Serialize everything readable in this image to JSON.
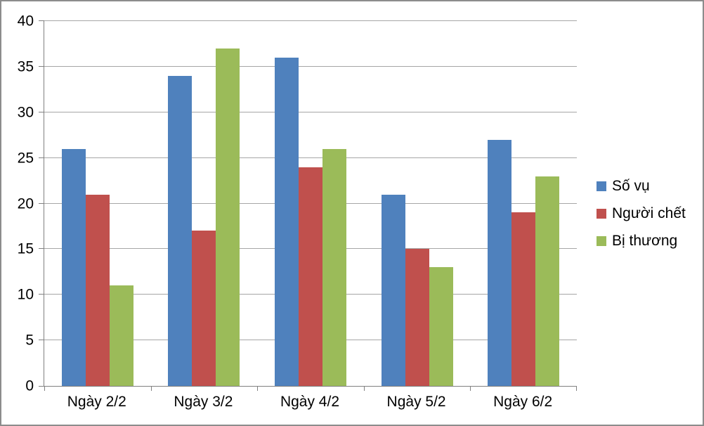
{
  "chart_data": {
    "type": "bar",
    "title": "",
    "categories": [
      "Ngày 2/2",
      "Ngày 3/2",
      "Ngày 4/2",
      "Ngày 5/2",
      "Ngày 6/2"
    ],
    "series": [
      {
        "name": "Số vụ",
        "color": "#4F81BD",
        "values": [
          26,
          34,
          36,
          21,
          27
        ]
      },
      {
        "name": "Người chết",
        "color": "#C0504D",
        "values": [
          21,
          17,
          24,
          15,
          19
        ]
      },
      {
        "name": "Bị thương",
        "color": "#9BBB59",
        "values": [
          11,
          37,
          26,
          13,
          23
        ]
      }
    ],
    "xlabel": "",
    "ylabel": "",
    "ylim": [
      0,
      40
    ],
    "yticks": [
      0,
      5,
      10,
      15,
      20,
      25,
      30,
      35,
      40
    ],
    "grid": true,
    "legend_position": "right-center"
  },
  "colors": {
    "background": "#FFFFFF",
    "frame_border": "#8C8C8C",
    "gridline": "#A6A6A6",
    "axis_line": "#808080",
    "text": "#000000"
  }
}
